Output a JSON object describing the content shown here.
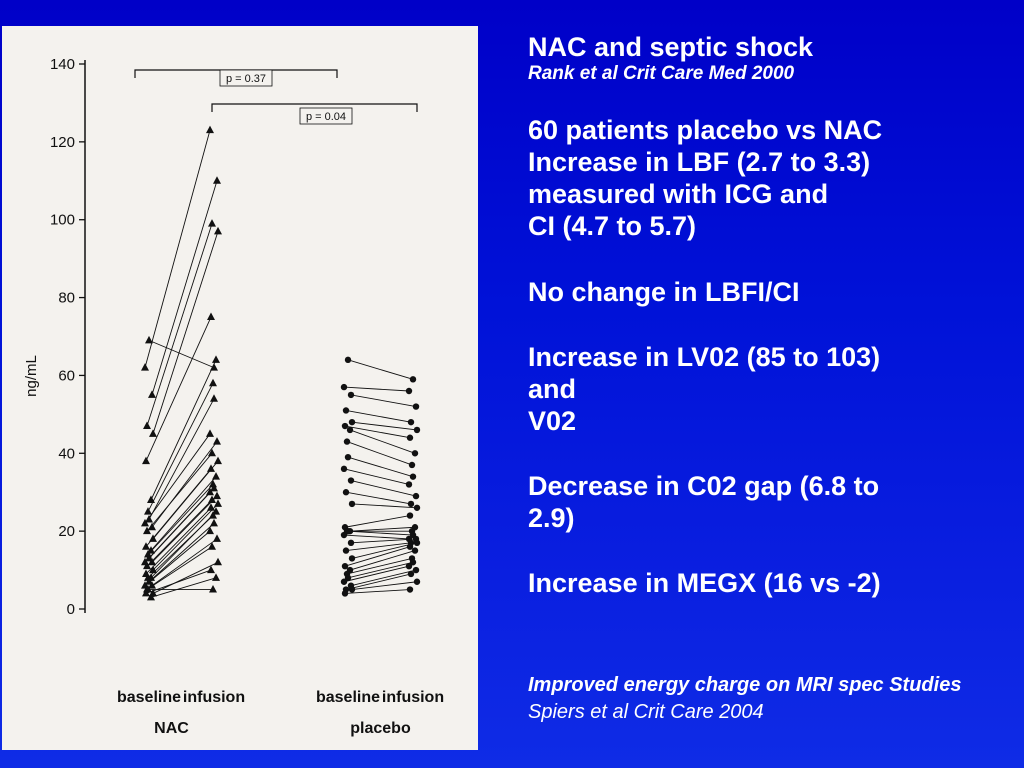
{
  "slide": {
    "title": "NAC and septic shock",
    "citation": "Rank et al Crit Care Med 2000",
    "bullets": [
      "60 patients placebo vs NAC\nIncrease in LBF (2.7 to 3.3)\nmeasured with ICG and\nCI (4.7 to 5.7)",
      "No change in LBFI/CI",
      "Increase in LV02 (85 to 103)\nand\nV02",
      "Decrease in C02 gap (6.8 to\n2.9)",
      "Increase in MEGX (16 vs -2)"
    ],
    "footer_italic_bold": "Improved energy charge on MRI spec Studies",
    "footer_italic": "Spiers et al Crit Care 2004"
  },
  "colors": {
    "background": "#0000c8",
    "text": "#ffffff",
    "figure_bg": "#f4f2ee",
    "ink": "#111111"
  },
  "chart_data": {
    "type": "scatter",
    "ylabel": "ng/mL",
    "ylim": [
      0,
      140
    ],
    "yticks": [
      0,
      20,
      40,
      60,
      80,
      100,
      120,
      140
    ],
    "categories": [
      "baseline",
      "infusion",
      "baseline",
      "infusion"
    ],
    "groups": [
      {
        "name": "NAC",
        "marker": "triangle",
        "p_value": "p = 0.37"
      },
      {
        "name": "placebo",
        "marker": "circle",
        "p_value": "p = 0.04"
      }
    ],
    "series": [
      {
        "name": "NAC",
        "pairs": [
          [
            69,
            62
          ],
          [
            62,
            123
          ],
          [
            55,
            110
          ],
          [
            47,
            99
          ],
          [
            45,
            97
          ],
          [
            38,
            75
          ],
          [
            28,
            64
          ],
          [
            25,
            58
          ],
          [
            23,
            54
          ],
          [
            22,
            45
          ],
          [
            21,
            43
          ],
          [
            20,
            40
          ],
          [
            18,
            38
          ],
          [
            16,
            36
          ],
          [
            15,
            34
          ],
          [
            14,
            32
          ],
          [
            13,
            31
          ],
          [
            12,
            30
          ],
          [
            12,
            29
          ],
          [
            11,
            28
          ],
          [
            10,
            27
          ],
          [
            9,
            26
          ],
          [
            8,
            25
          ],
          [
            8,
            24
          ],
          [
            7,
            22
          ],
          [
            6,
            20
          ],
          [
            6,
            18
          ],
          [
            5,
            16
          ],
          [
            4,
            12
          ],
          [
            4,
            10
          ],
          [
            3,
            8
          ],
          [
            5,
            5
          ]
        ]
      },
      {
        "name": "placebo",
        "pairs": [
          [
            64,
            59
          ],
          [
            57,
            56
          ],
          [
            55,
            52
          ],
          [
            51,
            48
          ],
          [
            48,
            46
          ],
          [
            47,
            44
          ],
          [
            46,
            40
          ],
          [
            43,
            37
          ],
          [
            39,
            34
          ],
          [
            36,
            32
          ],
          [
            33,
            29
          ],
          [
            30,
            27
          ],
          [
            27,
            26
          ],
          [
            21,
            24
          ],
          [
            20,
            21
          ],
          [
            20,
            20
          ],
          [
            20,
            19
          ],
          [
            19,
            18
          ],
          [
            17,
            18
          ],
          [
            15,
            17
          ],
          [
            13,
            17
          ],
          [
            11,
            16
          ],
          [
            10,
            15
          ],
          [
            9,
            13
          ],
          [
            8,
            12
          ],
          [
            7,
            11
          ],
          [
            6,
            10
          ],
          [
            5,
            9
          ],
          [
            5,
            7
          ],
          [
            4,
            5
          ]
        ]
      }
    ]
  }
}
